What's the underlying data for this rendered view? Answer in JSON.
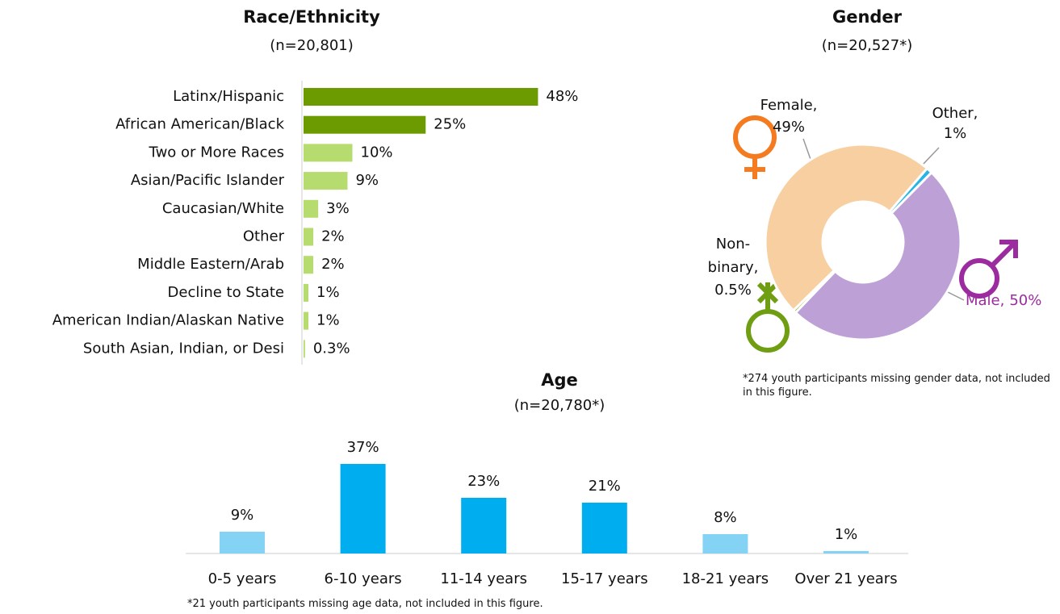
{
  "chart_data": [
    {
      "type": "hbar",
      "title": "Race/Ethnicity",
      "subtitle": "(n=20,801)",
      "categories": [
        "Latinx/Hispanic",
        "African American/Black",
        "Two or More Races",
        "Asian/Pacific Islander",
        "Caucasian/White",
        "Other",
        "Middle Eastern/Arab",
        "Decline to State",
        "American Indian/Alaskan Native",
        "South Asian, Indian, or Desi"
      ],
      "values": [
        48,
        25,
        10,
        9,
        3,
        2,
        2,
        1,
        1,
        0.3
      ],
      "value_labels": [
        "48%",
        "25%",
        "10%",
        "9%",
        "3%",
        "2%",
        "2%",
        "1%",
        "1%",
        "0.3%"
      ],
      "colors": [
        "#6b9b00",
        "#6b9b00",
        "#b6db6e",
        "#b6db6e",
        "#b6db6e",
        "#b6db6e",
        "#b6db6e",
        "#b6db6e",
        "#b6db6e",
        "#b6db6e"
      ]
    },
    {
      "type": "donut",
      "title": "Gender",
      "subtitle": "(n=20,527*)",
      "categories": [
        "Other,",
        "Male,",
        "Non-binary,",
        "Female,"
      ],
      "values": [
        1,
        50,
        0.5,
        49
      ],
      "value_labels": [
        "1%",
        "50%",
        "0.5%",
        "49%"
      ],
      "colors": [
        "#29b4e3",
        "#bca0d6",
        "#7bb31a",
        "#f8cfa1"
      ],
      "label_colors": [
        "#1ba7de",
        "#9b2b9e",
        "#6f9e12",
        "#f47b20"
      ],
      "note": "*274 youth participants missing gender data, not included in this figure."
    },
    {
      "type": "bar",
      "title": "Age",
      "subtitle": "(n=20,780*)",
      "categories": [
        "0-5 years",
        "6-10 years",
        "11-14 years",
        "15-17 years",
        "18-21 years",
        "Over 21 years"
      ],
      "values": [
        9,
        37,
        23,
        21,
        8,
        1
      ],
      "value_labels": [
        "9%",
        "37%",
        "23%",
        "21%",
        "8%",
        "1%"
      ],
      "colors": [
        "#85d3f4",
        "#00aeef",
        "#00aeef",
        "#00aeef",
        "#85d3f4",
        "#85d3f4"
      ],
      "note": "*21 youth participants missing age data, not included in this figure."
    }
  ]
}
